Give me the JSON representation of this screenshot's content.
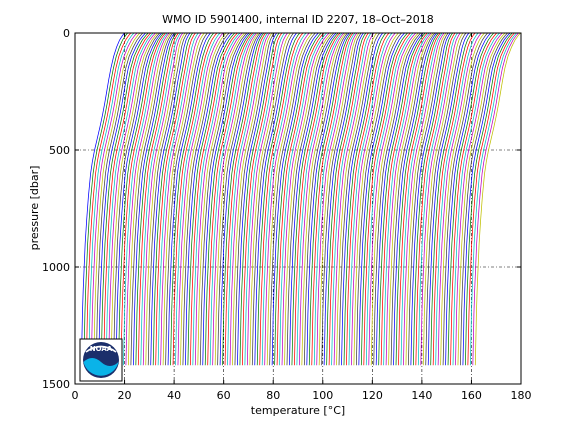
{
  "figure": {
    "title": "WMO ID 5901400, internal ID 2207, 18–Oct–2018"
  },
  "logo": {
    "text": "NOAA",
    "colors": {
      "dark": "#1b2f6b",
      "light": "#0ab3e8",
      "white": "#ffffff"
    }
  },
  "chart_data": {
    "type": "line",
    "title": "WMO ID 5901400, internal ID 2207, 18–Oct–2018",
    "xlabel": "temperature [°C]",
    "ylabel": "pressure [dbar]",
    "xlim": [
      0,
      180
    ],
    "ylim": [
      0,
      1500
    ],
    "y_reversed": true,
    "xticks": [
      0,
      20,
      40,
      60,
      80,
      100,
      120,
      140,
      160,
      180
    ],
    "yticks": [
      0,
      500,
      1000,
      1500
    ],
    "grid": "dash-dot",
    "profile_count": 160,
    "profile_offset_per_cast_degC": 1,
    "profile_colors": [
      "#0000ff",
      "#008000",
      "#ff0000",
      "#00bfbf",
      "#bf00bf",
      "#bfbf00",
      "#404040"
    ],
    "profile_shape": {
      "pressure": [
        0,
        10,
        30,
        60,
        100,
        150,
        200,
        250,
        300,
        350,
        400,
        450,
        500,
        550,
        600,
        700,
        800,
        900,
        1000,
        1100,
        1200,
        1300,
        1400,
        1420
      ],
      "temperature": [
        20.0,
        19.2,
        18.0,
        16.8,
        15.6,
        14.5,
        13.6,
        12.8,
        12.0,
        11.1,
        10.1,
        9.0,
        7.9,
        7.0,
        6.3,
        5.4,
        4.7,
        4.1,
        3.7,
        3.3,
        3.0,
        2.8,
        2.6,
        2.55
      ]
    }
  }
}
